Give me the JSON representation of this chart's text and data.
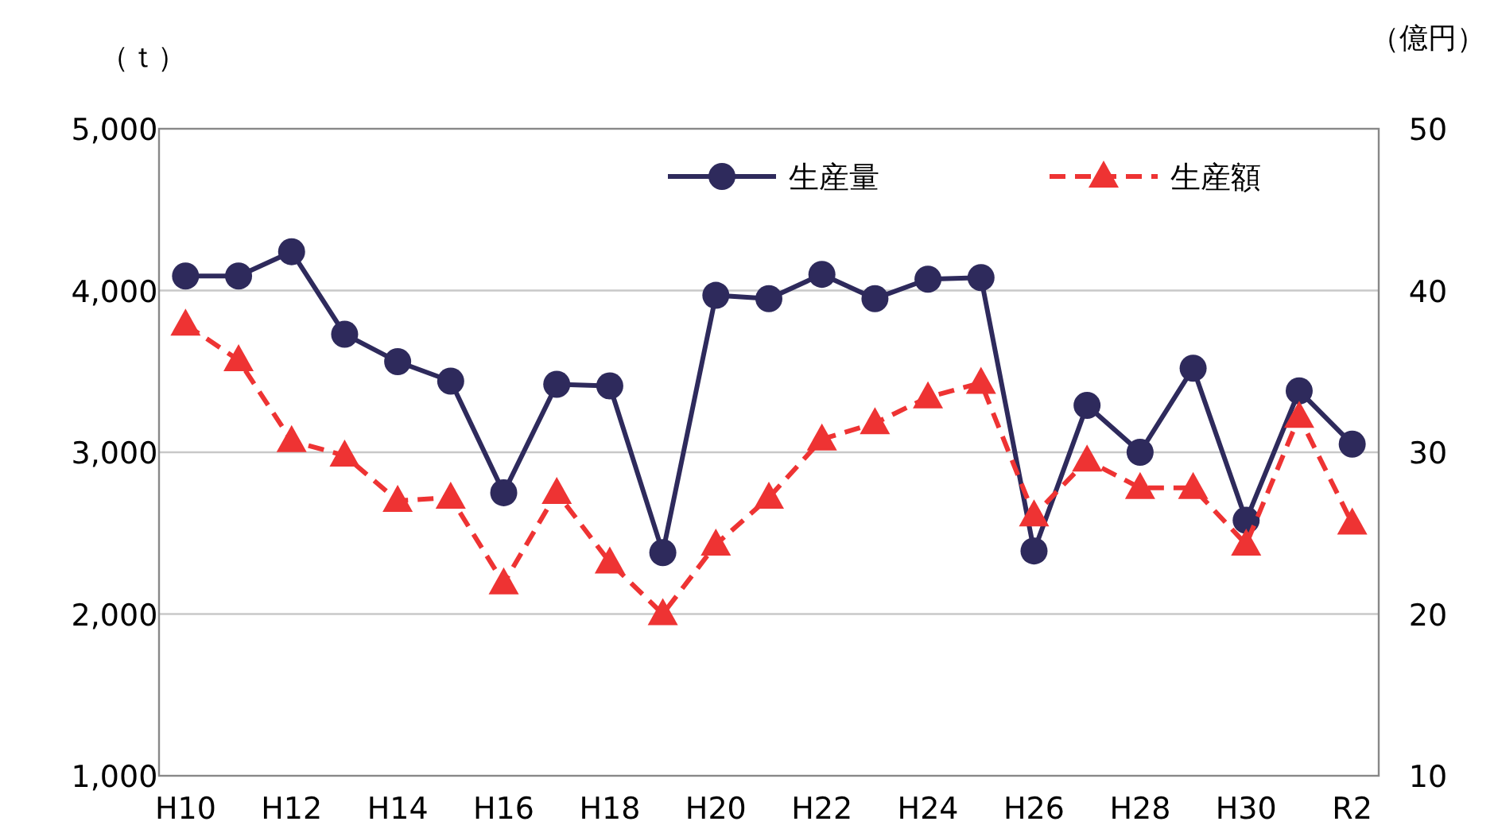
{
  "chart_data": {
    "type": "line",
    "ylabel": "（ｔ）",
    "y2label": "（億円）",
    "categories": [
      "H10",
      null,
      "H12",
      null,
      "H14",
      null,
      "H16",
      null,
      "H18",
      null,
      "H20",
      null,
      "H22",
      null,
      "H24",
      null,
      "H26",
      null,
      "H28",
      null,
      "H30",
      null,
      "R2"
    ],
    "series": [
      {
        "name": "生産量",
        "color": "#2e2a5c",
        "marker": "circle",
        "line_style": "solid",
        "values": [
          4090,
          4090,
          4240,
          3730,
          3560,
          3440,
          2750,
          3420,
          3410,
          2380,
          3970,
          3950,
          4100,
          3950,
          4070,
          4080,
          2390,
          3290,
          3000,
          3520,
          2580,
          3380,
          3050
        ]
      },
      {
        "name": "生産額",
        "color": "#ee3333",
        "marker": "triangle",
        "line_style": "dashed",
        "axis": "y2",
        "values": [
          37.9,
          35.7,
          30.7,
          29.8,
          27.0,
          27.2,
          21.9,
          27.5,
          23.2,
          20.0,
          24.3,
          27.2,
          30.8,
          31.8,
          33.4,
          34.3,
          26.1,
          29.5,
          27.8,
          27.8,
          24.3,
          32.2,
          25.6
        ]
      }
    ],
    "ylim": [
      1000,
      5000
    ],
    "yticks": [
      {
        "value": 1000,
        "label": "1,000"
      },
      {
        "value": 2000,
        "label": "2,000"
      },
      {
        "value": 3000,
        "label": "3,000"
      },
      {
        "value": 4000,
        "label": "4,000"
      },
      {
        "value": 5000,
        "label": "5,000"
      }
    ],
    "y2lim": [
      10,
      50
    ],
    "y2ticks": [
      10,
      20,
      30,
      40,
      50
    ],
    "grid": "y",
    "legend": "top right"
  }
}
